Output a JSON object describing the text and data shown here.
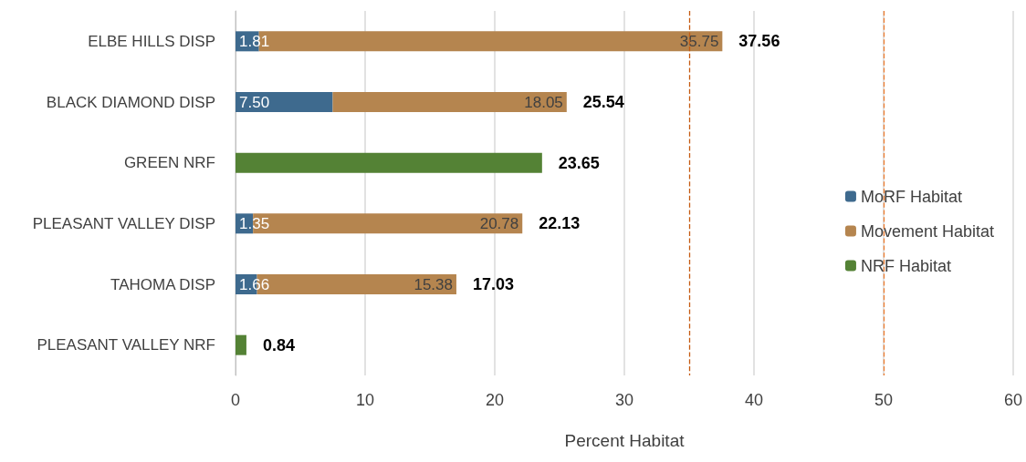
{
  "chart_data": {
    "type": "bar",
    "orientation": "horizontal",
    "stacked": true,
    "xlabel": "Percent Habitat",
    "categories": [
      "ELBE HILLS DISP",
      "BLACK DIAMOND DISP",
      "GREEN NRF",
      "PLEASANT VALLEY DISP",
      "TAHOMA DISP",
      "PLEASANT VALLEY NRF"
    ],
    "series": [
      {
        "name": "MoRF Habitat",
        "color": "#3e6a8e",
        "values": [
          1.81,
          7.5,
          null,
          1.35,
          1.66,
          null
        ],
        "value_labels": [
          "1.81",
          "7.50",
          null,
          "1.35",
          "1.66",
          null
        ]
      },
      {
        "name": "Movement Habitat",
        "color": "#b5854f",
        "values": [
          35.75,
          18.05,
          null,
          20.78,
          15.38,
          null
        ],
        "value_labels": [
          "35.75",
          "18.05",
          null,
          "20.78",
          "15.38",
          null
        ]
      },
      {
        "name": "NRF Habitat",
        "color": "#548235",
        "values": [
          null,
          null,
          23.65,
          null,
          null,
          0.84
        ]
      }
    ],
    "totals": [
      "37.56",
      "25.54",
      "23.65",
      "22.13",
      "17.03",
      "0.84"
    ],
    "xlim": [
      0,
      60
    ],
    "xticks": [
      0,
      10,
      20,
      30,
      40,
      50,
      60
    ],
    "grid": "x",
    "legend": "right",
    "ref_lines": [
      {
        "axis": "x",
        "value": 35,
        "color": "#c55a11",
        "line_style": "dashed"
      },
      {
        "axis": "x",
        "value": 50,
        "color": "#ed7d31",
        "line_style": "dashed"
      }
    ]
  }
}
